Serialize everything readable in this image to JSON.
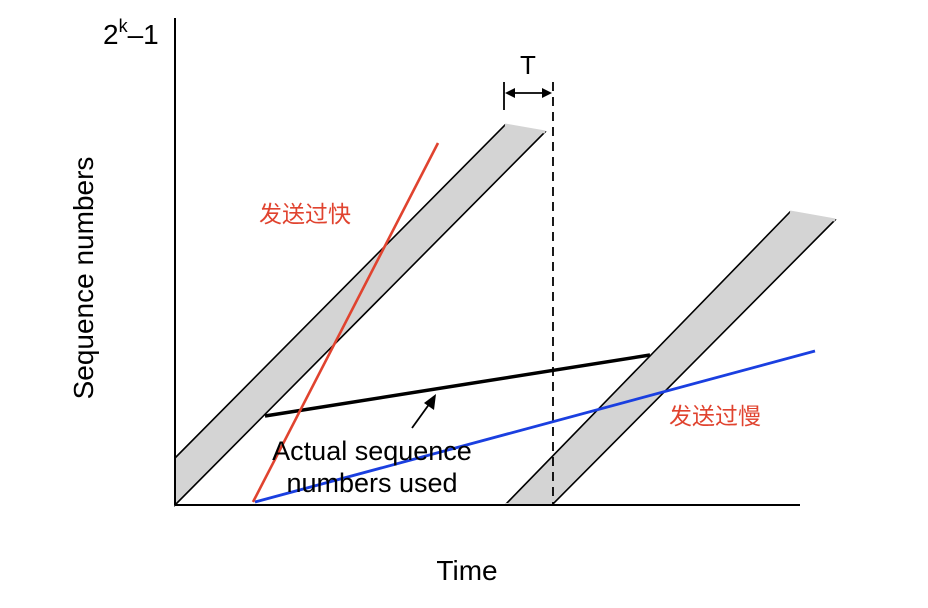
{
  "labels": {
    "y_top": "2",
    "y_top_sup": "k",
    "y_top_rest": "–1",
    "y_axis": "Sequence numbers",
    "x_axis": "Time",
    "interval": "T",
    "annotation_line1": "Actual sequence",
    "annotation_line2": "numbers used",
    "too_fast": "发送过快",
    "too_slow": "发送过慢"
  },
  "colors": {
    "band_fill": "#d4d4d4",
    "axis": "#000000",
    "fast_line": "#e0432f",
    "slow_line": "#1a3fe0",
    "fast_text": "#e0432f",
    "slow_text": "#e0432f"
  }
}
